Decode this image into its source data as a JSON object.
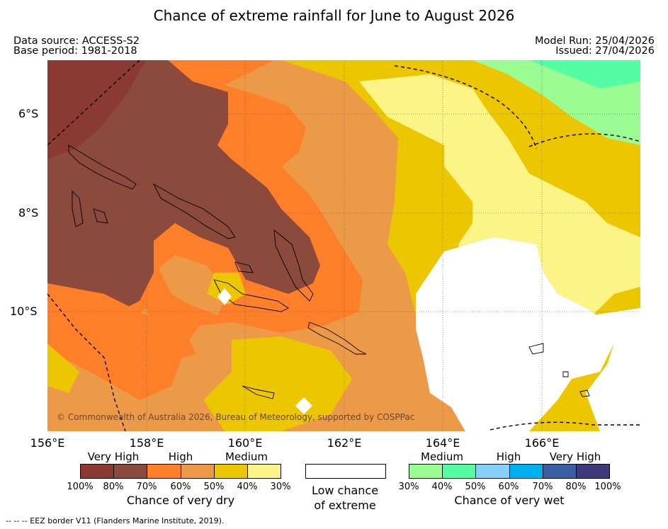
{
  "title": "Chance of extreme rainfall for June to August 2026",
  "header": {
    "data_source": "Data source: ACCESS-S2",
    "base_period": "Base period: 1981-2018",
    "model_run": "Model Run: 25/04/2026",
    "issued": "Issued: 27/04/2026"
  },
  "map": {
    "lat_ticks": [
      "6°S",
      "8°S",
      "10°S"
    ],
    "lon_ticks": [
      "156°E",
      "158°E",
      "160°E",
      "162°E",
      "164°E",
      "166°E"
    ],
    "copyright": "© Commonwealth of Australia 2026, Bureau of Meteorology, supported by COSPPac"
  },
  "legend": {
    "dry": {
      "categories": [
        "Very High",
        "High",
        "Medium"
      ],
      "percentages": [
        "100%",
        "80%",
        "70%",
        "60%",
        "50%",
        "40%",
        "30%"
      ],
      "label": "Chance of very dry",
      "colors": [
        "#8b3a32",
        "#8b4a3c",
        "#fd7f29",
        "#ec9a48",
        "#ecc600",
        "#fdf488"
      ]
    },
    "low": {
      "line1": "Low chance",
      "line2": "of extreme"
    },
    "wet": {
      "categories": [
        "Medium",
        "High",
        "Very High"
      ],
      "percentages": [
        "30%",
        "40%",
        "50%",
        "60%",
        "70%",
        "80%",
        "100%"
      ],
      "label": "Chance of very wet",
      "colors": [
        "#9afc93",
        "#54fda4",
        "#86cffa",
        "#00b0ee",
        "#3a5ea2",
        "#3d3b79"
      ]
    }
  },
  "footer": "--  --  -- EEZ border V11 (Flanders Marine Institute, 2019)."
}
